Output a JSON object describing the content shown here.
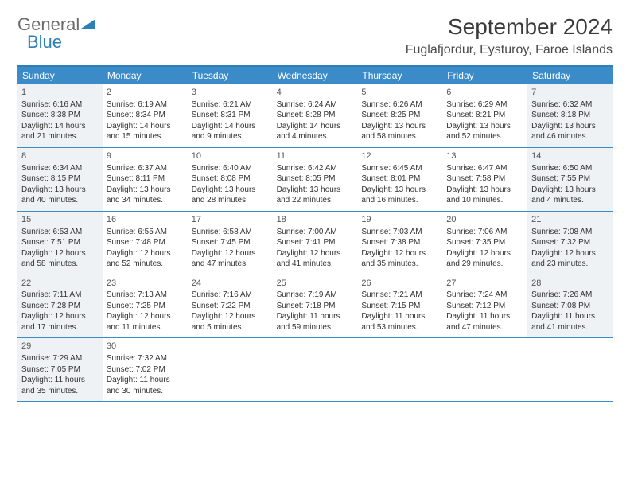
{
  "logo": {
    "text1": "General",
    "text2": "Blue"
  },
  "title": "September 2024",
  "location": "Fuglafjordur, Eysturoy, Faroe Islands",
  "colors": {
    "header_bg": "#3b8bc9",
    "header_text": "#ffffff",
    "border": "#2c7fb8",
    "shaded_bg": "#eef2f5",
    "body_text": "#333333"
  },
  "day_labels": [
    "Sunday",
    "Monday",
    "Tuesday",
    "Wednesday",
    "Thursday",
    "Friday",
    "Saturday"
  ],
  "weeks": [
    [
      {
        "n": "1",
        "sunrise": "6:16 AM",
        "sunset": "8:38 PM",
        "daylight": "14 hours and 21 minutes.",
        "shaded": true
      },
      {
        "n": "2",
        "sunrise": "6:19 AM",
        "sunset": "8:34 PM",
        "daylight": "14 hours and 15 minutes.",
        "shaded": false
      },
      {
        "n": "3",
        "sunrise": "6:21 AM",
        "sunset": "8:31 PM",
        "daylight": "14 hours and 9 minutes.",
        "shaded": false
      },
      {
        "n": "4",
        "sunrise": "6:24 AM",
        "sunset": "8:28 PM",
        "daylight": "14 hours and 4 minutes.",
        "shaded": false
      },
      {
        "n": "5",
        "sunrise": "6:26 AM",
        "sunset": "8:25 PM",
        "daylight": "13 hours and 58 minutes.",
        "shaded": false
      },
      {
        "n": "6",
        "sunrise": "6:29 AM",
        "sunset": "8:21 PM",
        "daylight": "13 hours and 52 minutes.",
        "shaded": false
      },
      {
        "n": "7",
        "sunrise": "6:32 AM",
        "sunset": "8:18 PM",
        "daylight": "13 hours and 46 minutes.",
        "shaded": true
      }
    ],
    [
      {
        "n": "8",
        "sunrise": "6:34 AM",
        "sunset": "8:15 PM",
        "daylight": "13 hours and 40 minutes.",
        "shaded": true
      },
      {
        "n": "9",
        "sunrise": "6:37 AM",
        "sunset": "8:11 PM",
        "daylight": "13 hours and 34 minutes.",
        "shaded": false
      },
      {
        "n": "10",
        "sunrise": "6:40 AM",
        "sunset": "8:08 PM",
        "daylight": "13 hours and 28 minutes.",
        "shaded": false
      },
      {
        "n": "11",
        "sunrise": "6:42 AM",
        "sunset": "8:05 PM",
        "daylight": "13 hours and 22 minutes.",
        "shaded": false
      },
      {
        "n": "12",
        "sunrise": "6:45 AM",
        "sunset": "8:01 PM",
        "daylight": "13 hours and 16 minutes.",
        "shaded": false
      },
      {
        "n": "13",
        "sunrise": "6:47 AM",
        "sunset": "7:58 PM",
        "daylight": "13 hours and 10 minutes.",
        "shaded": false
      },
      {
        "n": "14",
        "sunrise": "6:50 AM",
        "sunset": "7:55 PM",
        "daylight": "13 hours and 4 minutes.",
        "shaded": true
      }
    ],
    [
      {
        "n": "15",
        "sunrise": "6:53 AM",
        "sunset": "7:51 PM",
        "daylight": "12 hours and 58 minutes.",
        "shaded": true
      },
      {
        "n": "16",
        "sunrise": "6:55 AM",
        "sunset": "7:48 PM",
        "daylight": "12 hours and 52 minutes.",
        "shaded": false
      },
      {
        "n": "17",
        "sunrise": "6:58 AM",
        "sunset": "7:45 PM",
        "daylight": "12 hours and 47 minutes.",
        "shaded": false
      },
      {
        "n": "18",
        "sunrise": "7:00 AM",
        "sunset": "7:41 PM",
        "daylight": "12 hours and 41 minutes.",
        "shaded": false
      },
      {
        "n": "19",
        "sunrise": "7:03 AM",
        "sunset": "7:38 PM",
        "daylight": "12 hours and 35 minutes.",
        "shaded": false
      },
      {
        "n": "20",
        "sunrise": "7:06 AM",
        "sunset": "7:35 PM",
        "daylight": "12 hours and 29 minutes.",
        "shaded": false
      },
      {
        "n": "21",
        "sunrise": "7:08 AM",
        "sunset": "7:32 PM",
        "daylight": "12 hours and 23 minutes.",
        "shaded": true
      }
    ],
    [
      {
        "n": "22",
        "sunrise": "7:11 AM",
        "sunset": "7:28 PM",
        "daylight": "12 hours and 17 minutes.",
        "shaded": true
      },
      {
        "n": "23",
        "sunrise": "7:13 AM",
        "sunset": "7:25 PM",
        "daylight": "12 hours and 11 minutes.",
        "shaded": false
      },
      {
        "n": "24",
        "sunrise": "7:16 AM",
        "sunset": "7:22 PM",
        "daylight": "12 hours and 5 minutes.",
        "shaded": false
      },
      {
        "n": "25",
        "sunrise": "7:19 AM",
        "sunset": "7:18 PM",
        "daylight": "11 hours and 59 minutes.",
        "shaded": false
      },
      {
        "n": "26",
        "sunrise": "7:21 AM",
        "sunset": "7:15 PM",
        "daylight": "11 hours and 53 minutes.",
        "shaded": false
      },
      {
        "n": "27",
        "sunrise": "7:24 AM",
        "sunset": "7:12 PM",
        "daylight": "11 hours and 47 minutes.",
        "shaded": false
      },
      {
        "n": "28",
        "sunrise": "7:26 AM",
        "sunset": "7:08 PM",
        "daylight": "11 hours and 41 minutes.",
        "shaded": true
      }
    ],
    [
      {
        "n": "29",
        "sunrise": "7:29 AM",
        "sunset": "7:05 PM",
        "daylight": "11 hours and 35 minutes.",
        "shaded": true
      },
      {
        "n": "30",
        "sunrise": "7:32 AM",
        "sunset": "7:02 PM",
        "daylight": "11 hours and 30 minutes.",
        "shaded": false
      },
      null,
      null,
      null,
      null,
      null
    ]
  ],
  "labels": {
    "sunrise": "Sunrise:",
    "sunset": "Sunset:",
    "daylight": "Daylight:"
  }
}
